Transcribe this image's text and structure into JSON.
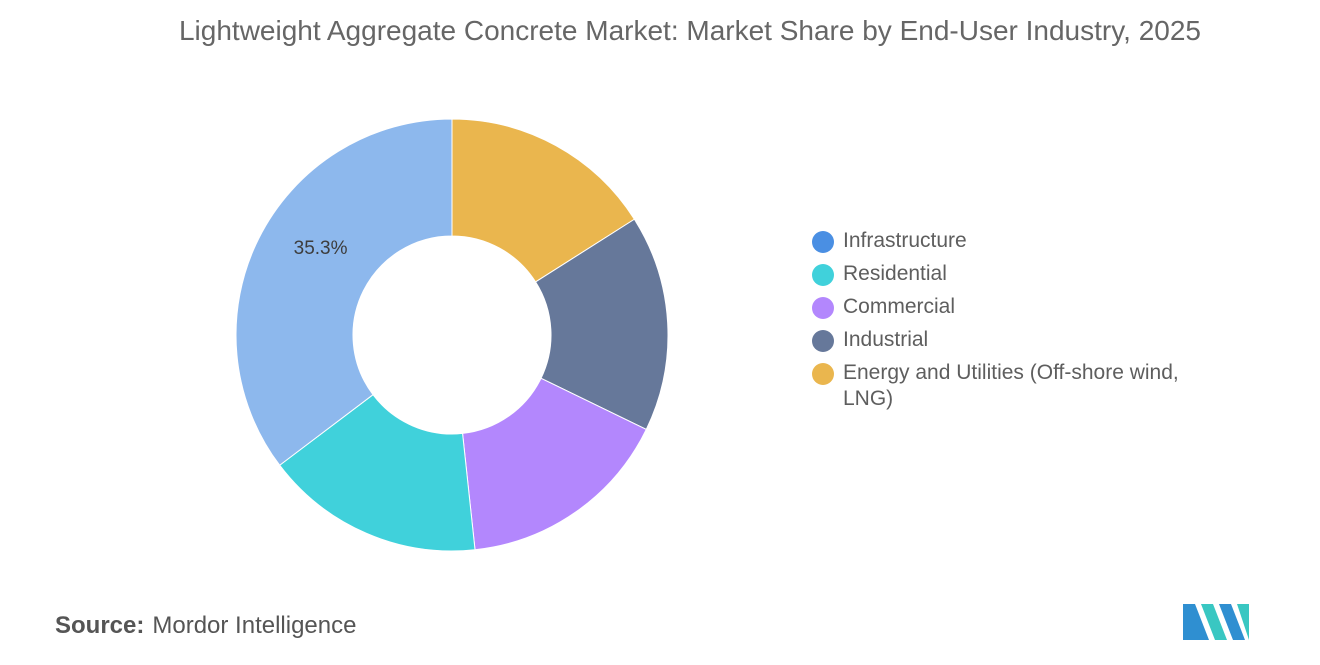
{
  "chart_data": {
    "type": "pie",
    "title": "Lightweight Aggregate Concrete Market: Market Share by End-User Industry, 2025",
    "categories": [
      "Infrastructure",
      "Residential",
      "Commercial",
      "Industrial",
      "Energy and Utilities (Off-shore wind, LNG)"
    ],
    "values": [
      35.3,
      16.4,
      16.1,
      16.2,
      16.0
    ],
    "data_labels": [
      "35.3%",
      "",
      "",
      "",
      ""
    ],
    "colors": [
      "#8db8ed",
      "#40d1db",
      "#b387fd",
      "#66789a",
      "#eab64e"
    ],
    "legend_colors": [
      "#4a8fe3",
      "#40d1db",
      "#b387fd",
      "#66789a",
      "#eab64e"
    ],
    "donut": true,
    "legend_position": "right"
  },
  "source": {
    "label": "Source:",
    "value": "Mordor Intelligence"
  },
  "logo": {
    "icon": "mordor-intelligence-logo",
    "colors": [
      "#2f8fd1",
      "#39c7c2"
    ]
  }
}
